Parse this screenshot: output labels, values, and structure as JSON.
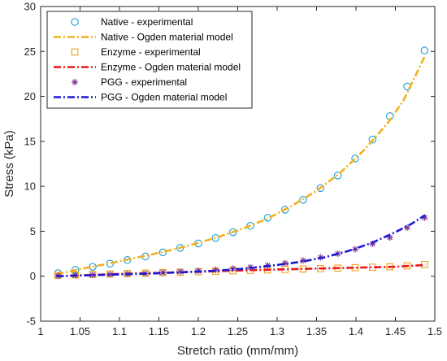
{
  "chart_data": {
    "type": "scatter",
    "title": "",
    "xlabel": "Stretch ratio (mm/mm)",
    "ylabel": "Stress (kPa)",
    "xlim": [
      1,
      1.5
    ],
    "ylim": [
      -5,
      30
    ],
    "xticks": [
      1,
      1.05,
      1.1,
      1.15,
      1.2,
      1.25,
      1.3,
      1.35,
      1.4,
      1.45,
      1.5
    ],
    "yticks": [
      -5,
      0,
      5,
      10,
      15,
      20,
      25,
      30
    ],
    "xtick_labels": [
      "1",
      "1.05",
      "1.1",
      "1.15",
      "1.2",
      "1.25",
      "1.3",
      "1.35",
      "1.4",
      "1.45",
      "1.5"
    ],
    "ytick_labels": [
      "-5",
      "0",
      "5",
      "10",
      "15",
      "20",
      "25",
      "30"
    ],
    "grid": false,
    "legend_position": "top-left",
    "series": [
      {
        "name": "Native - experimental",
        "kind": "marker",
        "marker": "circle",
        "color": "#1a9fd6",
        "points": [
          [
            1.022,
            0.35
          ],
          [
            1.044,
            0.7
          ],
          [
            1.066,
            1.05
          ],
          [
            1.088,
            1.4
          ],
          [
            1.11,
            1.8
          ],
          [
            1.133,
            2.2
          ],
          [
            1.155,
            2.65
          ],
          [
            1.177,
            3.15
          ],
          [
            1.2,
            3.65
          ],
          [
            1.222,
            4.25
          ],
          [
            1.244,
            4.9
          ],
          [
            1.266,
            5.6
          ],
          [
            1.288,
            6.5
          ],
          [
            1.31,
            7.4
          ],
          [
            1.333,
            8.5
          ],
          [
            1.355,
            9.8
          ],
          [
            1.377,
            11.2
          ],
          [
            1.399,
            13.1
          ],
          [
            1.421,
            15.2
          ],
          [
            1.443,
            17.8
          ],
          [
            1.465,
            21.1
          ],
          [
            1.487,
            25.1
          ]
        ]
      },
      {
        "name": "Native - Ogden material model",
        "kind": "line",
        "dash": "dashdot",
        "color": "#f2b01d",
        "points": [
          [
            1.02,
            0.2
          ],
          [
            1.05,
            0.8
          ],
          [
            1.08,
            1.3
          ],
          [
            1.11,
            1.85
          ],
          [
            1.14,
            2.4
          ],
          [
            1.17,
            3.0
          ],
          [
            1.2,
            3.7
          ],
          [
            1.23,
            4.5
          ],
          [
            1.26,
            5.4
          ],
          [
            1.29,
            6.5
          ],
          [
            1.32,
            7.9
          ],
          [
            1.35,
            9.5
          ],
          [
            1.38,
            11.5
          ],
          [
            1.41,
            14.0
          ],
          [
            1.44,
            17.0
          ],
          [
            1.46,
            19.5
          ],
          [
            1.488,
            24.6
          ]
        ]
      },
      {
        "name": "Enzyme - experimental",
        "kind": "marker",
        "marker": "square",
        "color": "#f2a21d",
        "points": [
          [
            1.022,
            0.1
          ],
          [
            1.044,
            0.15
          ],
          [
            1.066,
            0.2
          ],
          [
            1.088,
            0.25
          ],
          [
            1.11,
            0.3
          ],
          [
            1.133,
            0.35
          ],
          [
            1.155,
            0.4
          ],
          [
            1.177,
            0.45
          ],
          [
            1.2,
            0.5
          ],
          [
            1.222,
            0.55
          ],
          [
            1.244,
            0.6
          ],
          [
            1.266,
            0.65
          ],
          [
            1.288,
            0.7
          ],
          [
            1.31,
            0.75
          ],
          [
            1.333,
            0.8
          ],
          [
            1.355,
            0.85
          ],
          [
            1.377,
            0.9
          ],
          [
            1.399,
            0.95
          ],
          [
            1.421,
            1.0
          ],
          [
            1.443,
            1.05
          ],
          [
            1.465,
            1.15
          ],
          [
            1.487,
            1.3
          ]
        ]
      },
      {
        "name": "Enzyme - Ogden material model",
        "kind": "line",
        "dash": "dashdot",
        "color": "#e8181a",
        "points": [
          [
            1.02,
            0.0
          ],
          [
            1.1,
            0.25
          ],
          [
            1.2,
            0.5
          ],
          [
            1.3,
            0.75
          ],
          [
            1.4,
            0.95
          ],
          [
            1.45,
            1.05
          ],
          [
            1.488,
            1.25
          ]
        ]
      },
      {
        "name": "PGG - experimental",
        "kind": "marker",
        "marker": "asterisk",
        "color": "#7e2f8e",
        "points": [
          [
            1.022,
            0.05
          ],
          [
            1.044,
            0.1
          ],
          [
            1.066,
            0.15
          ],
          [
            1.088,
            0.2
          ],
          [
            1.11,
            0.25
          ],
          [
            1.133,
            0.3
          ],
          [
            1.155,
            0.4
          ],
          [
            1.177,
            0.5
          ],
          [
            1.2,
            0.6
          ],
          [
            1.222,
            0.7
          ],
          [
            1.244,
            0.85
          ],
          [
            1.266,
            1.0
          ],
          [
            1.288,
            1.2
          ],
          [
            1.31,
            1.45
          ],
          [
            1.333,
            1.75
          ],
          [
            1.355,
            2.1
          ],
          [
            1.377,
            2.5
          ],
          [
            1.399,
            3.0
          ],
          [
            1.421,
            3.6
          ],
          [
            1.443,
            4.3
          ],
          [
            1.465,
            5.4
          ],
          [
            1.487,
            6.5
          ]
        ]
      },
      {
        "name": "PGG - Ogden material model",
        "kind": "line",
        "dash": "dashdot",
        "color": "#1a1ad6",
        "points": [
          [
            1.02,
            0.0
          ],
          [
            1.06,
            0.1
          ],
          [
            1.1,
            0.2
          ],
          [
            1.14,
            0.3
          ],
          [
            1.18,
            0.45
          ],
          [
            1.22,
            0.6
          ],
          [
            1.26,
            0.85
          ],
          [
            1.3,
            1.25
          ],
          [
            1.33,
            1.6
          ],
          [
            1.36,
            2.1
          ],
          [
            1.39,
            2.8
          ],
          [
            1.42,
            3.7
          ],
          [
            1.45,
            4.9
          ],
          [
            1.47,
            5.8
          ],
          [
            1.488,
            6.8
          ]
        ]
      }
    ]
  }
}
